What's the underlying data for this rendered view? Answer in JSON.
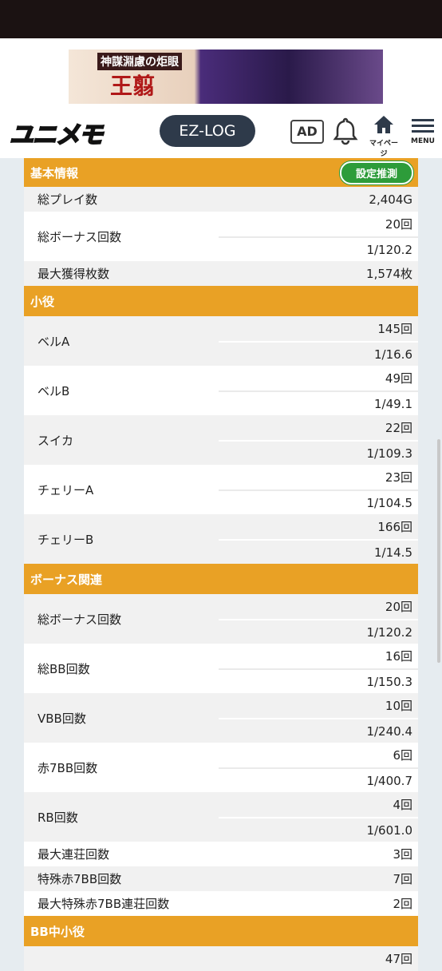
{
  "banner": {
    "subtitle": "神謀淵慮の炬眼",
    "title": "王翦"
  },
  "header": {
    "logo": "ユニメモ",
    "ez_log": "EZ-LOG",
    "ad": "AD",
    "mypage": "マイページ",
    "menu": "MENU"
  },
  "sections": [
    {
      "title": "基本情報",
      "button": "設定推測",
      "rows": [
        {
          "label": "総プレイ数",
          "values": [
            "2,404G"
          ]
        },
        {
          "label": "総ボーナス回数",
          "values": [
            "20回",
            "1/120.2"
          ]
        },
        {
          "label": "最大獲得枚数",
          "values": [
            "1,574枚"
          ]
        }
      ]
    },
    {
      "title": "小役",
      "rows": [
        {
          "label": "ベルA",
          "values": [
            "145回",
            "1/16.6"
          ]
        },
        {
          "label": "ベルB",
          "values": [
            "49回",
            "1/49.1"
          ]
        },
        {
          "label": "スイカ",
          "values": [
            "22回",
            "1/109.3"
          ]
        },
        {
          "label": "チェリーA",
          "values": [
            "23回",
            "1/104.5"
          ]
        },
        {
          "label": "チェリーB",
          "values": [
            "166回",
            "1/14.5"
          ]
        }
      ]
    },
    {
      "title": "ボーナス関連",
      "rows": [
        {
          "label": "総ボーナス回数",
          "values": [
            "20回",
            "1/120.2"
          ]
        },
        {
          "label": "総BB回数",
          "values": [
            "16回",
            "1/150.3"
          ]
        },
        {
          "label": "VBB回数",
          "values": [
            "10回",
            "1/240.4"
          ]
        },
        {
          "label": "赤7BB回数",
          "values": [
            "6回",
            "1/400.7"
          ]
        },
        {
          "label": "RB回数",
          "values": [
            "4回",
            "1/601.0"
          ]
        },
        {
          "label": "最大連荘回数",
          "values": [
            "3回"
          ]
        },
        {
          "label": "特殊赤7BB回数",
          "values": [
            "7回"
          ]
        },
        {
          "label": "最大特殊赤7BB連荘回数",
          "values": [
            "2回"
          ]
        }
      ]
    },
    {
      "title": "BB中小役",
      "rows": [
        {
          "values": [
            "47回"
          ]
        }
      ]
    }
  ]
}
